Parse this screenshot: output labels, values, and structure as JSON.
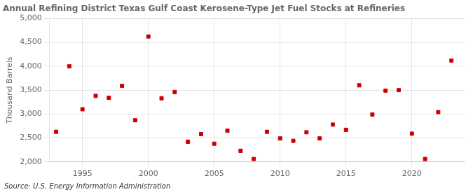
{
  "chart_data": {
    "type": "scatter",
    "title": "Annual Refining District Texas Gulf Coast Kerosene-Type Jet Fuel Stocks at Refineries",
    "y_label": "Thousand Barrels",
    "annotation": "Source: U.S. Energy Information Administration",
    "x": [
      1993,
      1994,
      1995,
      1996,
      1997,
      1998,
      1999,
      2000,
      2001,
      2002,
      2003,
      2004,
      2005,
      2006,
      2007,
      2008,
      2009,
      2010,
      2011,
      2012,
      2013,
      2014,
      2015,
      2016,
      2017,
      2018,
      2019,
      2020,
      2021,
      2022,
      2023
    ],
    "values": [
      2630,
      4000,
      3100,
      3380,
      3340,
      3590,
      2870,
      4620,
      3330,
      3460,
      2420,
      2580,
      2380,
      2650,
      2230,
      2060,
      2630,
      2490,
      2440,
      2620,
      2490,
      2780,
      2670,
      3600,
      2990,
      3490,
      3500,
      2590,
      2060,
      3040,
      4120
    ],
    "color": "#cc0000",
    "marker": "square",
    "xlim": [
      1992.5,
      2024
    ],
    "xticks": [
      1995,
      2000,
      2005,
      2010,
      2015,
      2020
    ],
    "ylim": [
      2000,
      5000
    ],
    "yticks": [
      {
        "value": 2000,
        "label": "2,000"
      },
      {
        "value": 2500,
        "label": "2,500"
      },
      {
        "value": 3000,
        "label": "3,000"
      },
      {
        "value": 3500,
        "label": "3,500"
      },
      {
        "value": 4000,
        "label": "4,000"
      },
      {
        "value": 4500,
        "label": "4,500"
      },
      {
        "value": 5000,
        "label": "5,000"
      }
    ],
    "grid": true
  }
}
